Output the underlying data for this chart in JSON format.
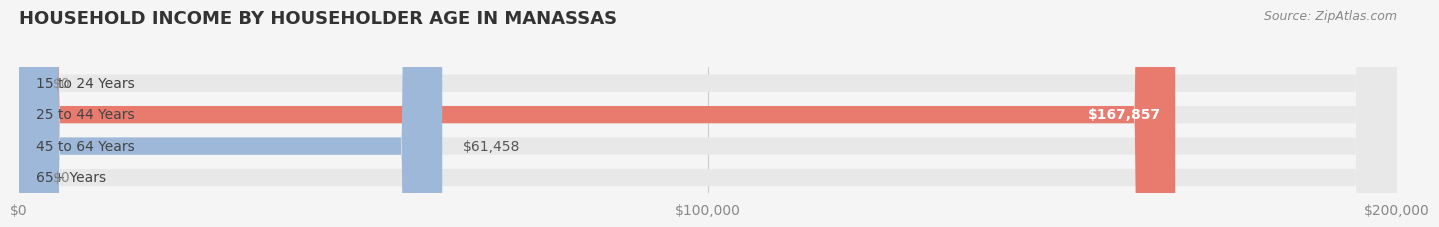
{
  "title": "HOUSEHOLD INCOME BY HOUSEHOLDER AGE IN MANASSAS",
  "source": "Source: ZipAtlas.com",
  "categories": [
    "15 to 24 Years",
    "25 to 44 Years",
    "45 to 64 Years",
    "65+ Years"
  ],
  "values": [
    0,
    167857,
    61458,
    0
  ],
  "bar_colors": [
    "#f5c9a0",
    "#e87b6e",
    "#9db8d9",
    "#c9a8d4"
  ],
  "label_colors": [
    "#888888",
    "#ffffff",
    "#555555",
    "#888888"
  ],
  "bar_labels": [
    "$0",
    "$167,857",
    "$61,458",
    "$0"
  ],
  "background_color": "#f5f5f5",
  "bar_bg_color": "#e8e8e8",
  "xlim": [
    0,
    200000
  ],
  "xticks": [
    0,
    100000,
    200000
  ],
  "xticklabels": [
    "$0",
    "$100,000",
    "$200,000"
  ],
  "bar_height": 0.55,
  "title_fontsize": 13,
  "label_fontsize": 10,
  "tick_fontsize": 10,
  "source_fontsize": 9,
  "category_fontsize": 10
}
